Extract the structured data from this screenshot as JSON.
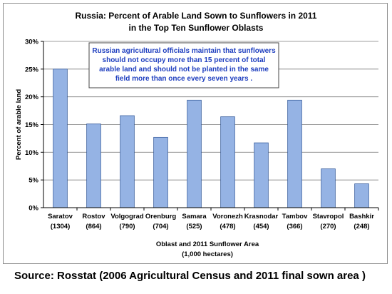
{
  "chart_data": {
    "type": "bar",
    "title_lines": [
      "Russia:  Percent of Arable Land Sown to Sunflowers in 2011",
      "in the Top Ten Sunflower Oblasts"
    ],
    "categories": [
      "Saratov",
      "Rostov",
      "Volgograd",
      "Orenburg",
      "Samara",
      "Voronezh",
      "Krasnodar",
      "Tambov",
      "Stavropol",
      "Bashkir"
    ],
    "area_labels": [
      "(1304)",
      "(864)",
      "(790)",
      "(704)",
      "(525)",
      "(478)",
      "(454)",
      "(366)",
      "(270)",
      "(248)"
    ],
    "values": [
      25.0,
      15.1,
      16.6,
      12.7,
      19.4,
      16.4,
      11.7,
      19.4,
      7.0,
      4.3
    ],
    "ylabel": "Percent of arable land",
    "xlabel_lines": [
      "Oblast and 2011 Sunflower Area",
      "(1,000 hectares)"
    ],
    "yticks": [
      "0%",
      "5%",
      "10%",
      "15%",
      "20%",
      "25%",
      "30%"
    ],
    "highlight_tick": "15%",
    "ylim": [
      0,
      30
    ],
    "grid": true,
    "bar_color": "#95b3e4",
    "bar_edge": "#3a5f9e",
    "highlight_color": "#c00000",
    "note_color": "#1f3fbf",
    "annotation_lines": [
      "Russian agricultural officials maintain that sunflowers",
      "should not occupy more than 15 percent of total",
      "arable land and should not be planted in the same",
      "field more than once every seven years ."
    ]
  },
  "source": "Source:  Rosstat (2006 Agricultural Census and 2011 final sown area )"
}
